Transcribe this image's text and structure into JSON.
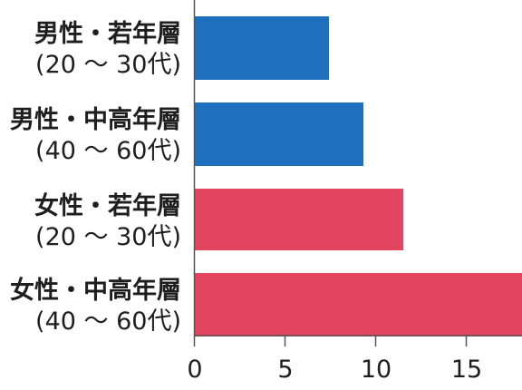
{
  "chart_data": {
    "type": "bar",
    "orientation": "horizontal",
    "title": "",
    "xlabel": "",
    "ylabel": "",
    "categories": [
      {
        "line1": "男性・若年層",
        "line2": "(20 ～ 30代)"
      },
      {
        "line1": "男性・中高年層",
        "line2": "(40 ～ 60代)"
      },
      {
        "line1": "女性・若年層",
        "line2": "(20 ～ 30代)"
      },
      {
        "line1": "女性・中高年層",
        "line2": "(40 ～ 60代)"
      }
    ],
    "values": [
      7.4,
      9.3,
      11.5,
      18.2
    ],
    "colors": [
      "#1f6fbf",
      "#1f6fbf",
      "#e3455f",
      "#e3455f"
    ],
    "xlim": [
      0,
      18
    ],
    "xticks": [
      "0",
      "5",
      "10",
      "15"
    ],
    "grid": false,
    "legend": "none"
  }
}
